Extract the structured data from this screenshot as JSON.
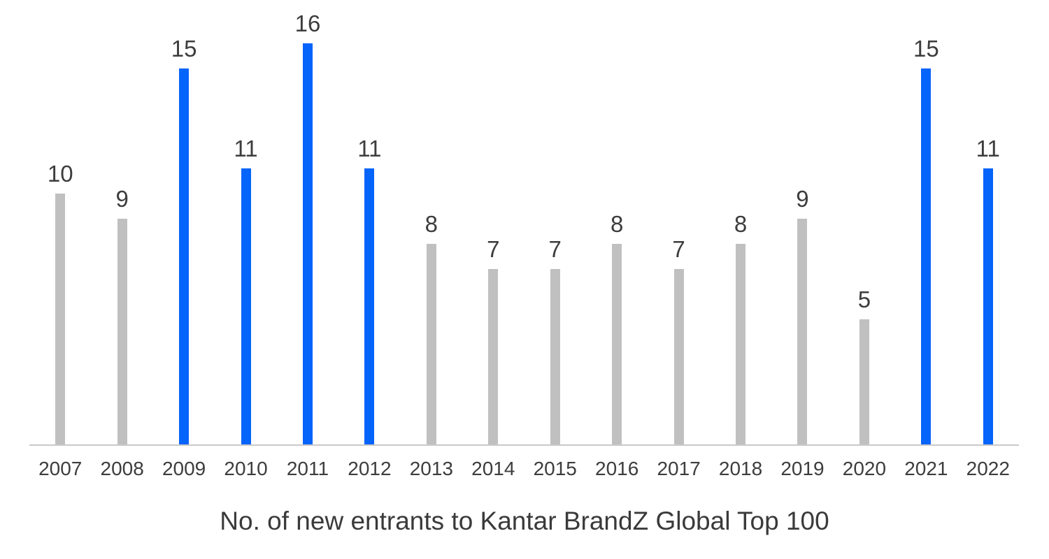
{
  "colors": {
    "highlight": "#0564fa",
    "bar_default": "#c0c0c0",
    "text": "#3d3d3d",
    "axis": "#c9c9c9"
  },
  "chart_data": {
    "type": "bar",
    "categories": [
      "2007",
      "2008",
      "2009",
      "2010",
      "2011",
      "2012",
      "2013",
      "2014",
      "2015",
      "2016",
      "2017",
      "2018",
      "2019",
      "2020",
      "2021",
      "2022"
    ],
    "values": [
      10,
      9,
      15,
      11,
      16,
      11,
      8,
      7,
      7,
      8,
      7,
      8,
      9,
      5,
      15,
      11
    ],
    "highlighted_categories": [
      "2009",
      "2010",
      "2011",
      "2012",
      "2021",
      "2022"
    ],
    "value_labels_shown": true,
    "title": "No. of new entrants to Kantar BrandZ Global Top 100",
    "xlabel": "",
    "ylabel": "",
    "ylim": [
      0,
      17.7
    ],
    "grid": false,
    "legend_position": "none"
  }
}
